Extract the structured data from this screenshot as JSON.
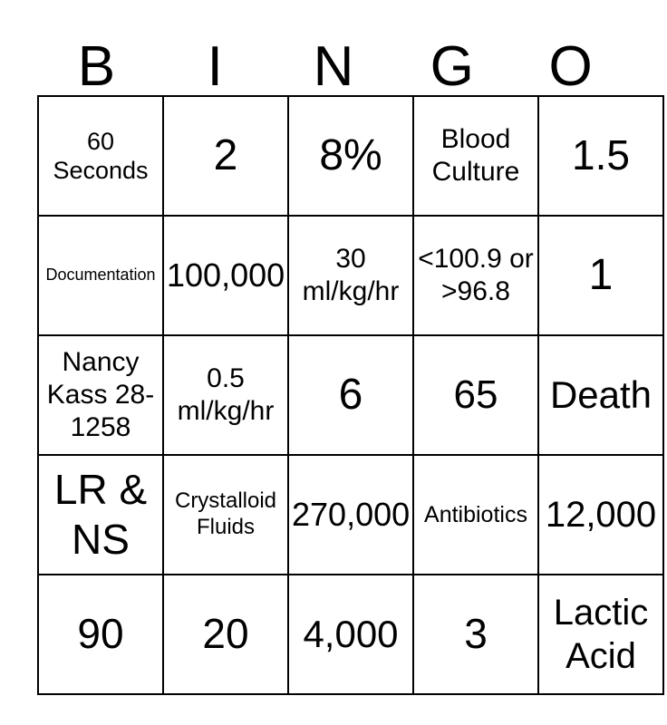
{
  "title": "BINGO",
  "header": {
    "letters": [
      "B",
      "I",
      "N",
      "G",
      "O"
    ]
  },
  "grid": {
    "rows": [
      [
        "60 Seconds",
        "2",
        "8%",
        "Blood Culture",
        "1.5"
      ],
      [
        "Documentation",
        "100,000",
        "30 ml/kg/hr",
        "<100.9 or >96.8",
        "1"
      ],
      [
        "Nancy Kass 28-1258",
        "0.5 ml/kg/hr",
        "6",
        "65",
        "Death"
      ],
      [
        "LR & NS",
        "Crystalloid Fluids",
        "270,000",
        "Antibiotics",
        "12,000"
      ],
      [
        "90",
        "20",
        "4,000",
        "3",
        "Lactic Acid"
      ]
    ]
  },
  "colors": {
    "background": "#ffffff",
    "grid_border": "#000000",
    "text": "#000000"
  }
}
